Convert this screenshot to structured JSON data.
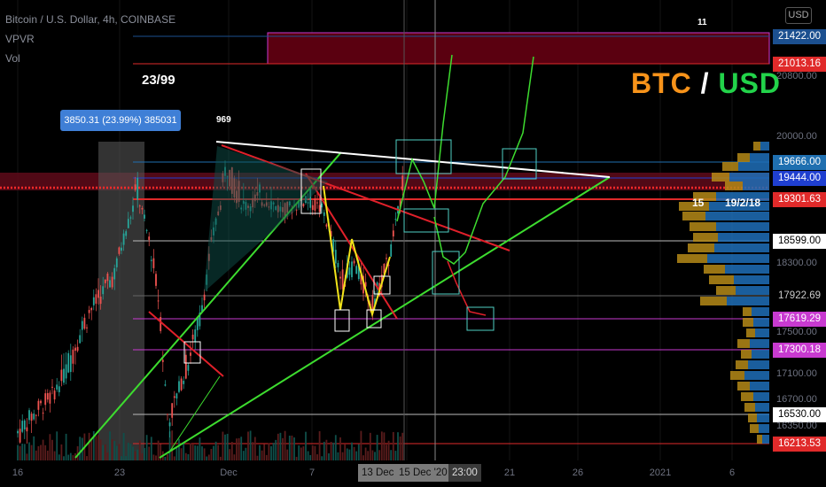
{
  "legend": {
    "symbol_line": "Bitcoin / U.S. Dollar, 4h, COINBASE",
    "indicator_1": "VPVR",
    "indicator_2": "Vol"
  },
  "currency_button": "USD",
  "title": {
    "left": "BTC",
    "sep": "/",
    "right": "USD",
    "left_color": "#f7931a",
    "right_color": "#22d34a"
  },
  "annotations": {
    "counter_top": "23/99",
    "label_969": "969",
    "label_11": "11",
    "label_15": "15",
    "label_date": "19/2/18"
  },
  "measure_box": "3850.31 (23.99%) 385031",
  "price_tags": [
    {
      "text": "21422.00",
      "price": 21422,
      "bg": "#1b4f8f"
    },
    {
      "text": "21013.16",
      "price": 21013.16,
      "bg": "#e02a2a"
    },
    {
      "text": "19666.00",
      "price": 19666,
      "bg": "#1f6fb0"
    },
    {
      "text": "19444.00",
      "price": 19444,
      "bg": "#1f3fd0"
    },
    {
      "text": "19301.63",
      "price": 19301.63,
      "bg": "#e02a2a"
    },
    {
      "text": "18599.00",
      "price": 18599,
      "bg": "#ffffff",
      "fg": "#000000"
    },
    {
      "text": "17922.69",
      "price": 17922.69,
      "bg": "#000000",
      "fg": "#cccccc"
    },
    {
      "text": "17619.29",
      "price": 17619.29,
      "bg": "#c83ad0"
    },
    {
      "text": "17300.18",
      "price": 17300.18,
      "bg": "#c83ad0"
    },
    {
      "text": "16530.00",
      "price": 16530,
      "bg": "#ffffff",
      "fg": "#000000"
    },
    {
      "text": "16213.53",
      "price": 16213.53,
      "bg": "#e02a2a"
    }
  ],
  "y_axis_labels": [
    "20800.00",
    "20000.00",
    "18300.00",
    "17500.00",
    "17100.00",
    "16700.00",
    "16350.00"
  ],
  "x_axis_labels": [
    {
      "text": "16",
      "t": 0
    },
    {
      "text": "23",
      "t": 1
    },
    {
      "text": "Dec",
      "t": 2
    },
    {
      "text": "7",
      "t": 3
    },
    {
      "text": "21",
      "t": 5
    },
    {
      "text": "26",
      "t": 6
    },
    {
      "text": "2021",
      "t": 7
    },
    {
      "text": "6",
      "t": 8
    }
  ],
  "time_tags": [
    "13 Dec",
    "15 Dec '20",
    "23:00"
  ],
  "colors": {
    "background": "#000000",
    "up": "#26a69a",
    "down": "#ef5350",
    "green_line": "#3ddc2f",
    "red_line": "#e0202a",
    "yellow_line": "#f2e41a",
    "white_line": "#ffffff"
  },
  "chart_data": {
    "type": "candlestick",
    "price_levels": [
      21422,
      21013.16,
      19666,
      19444,
      19301.63,
      18599,
      17922.69,
      17619.29,
      17300.18,
      16530,
      16213.53
    ]
  }
}
